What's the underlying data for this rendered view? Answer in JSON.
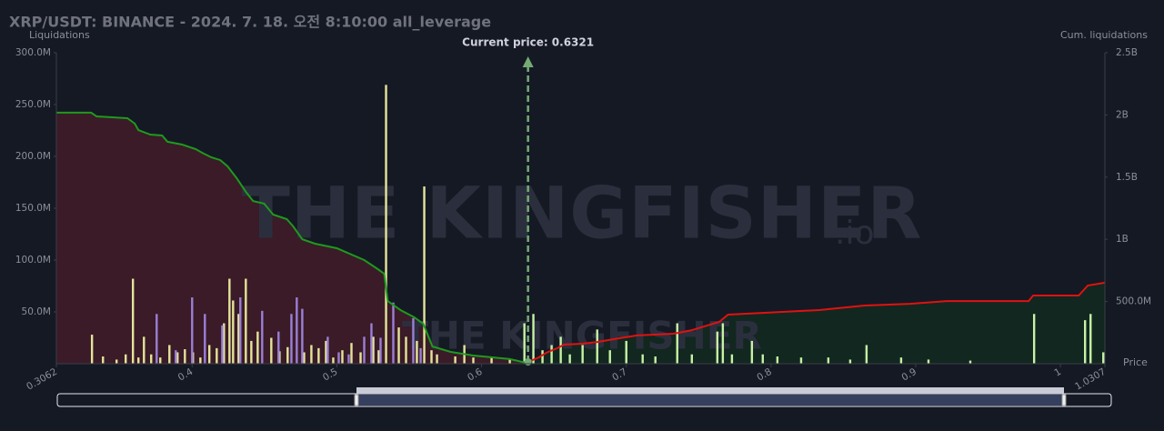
{
  "chart_data": {
    "type": "bar",
    "title": "XRP/USDT: BINANCE - 2024. 7. 18. 오전 8:10:00 all_leverage",
    "y_label": "Liquidations",
    "y2_label": "Cum. liquidations",
    "x_label": "Price",
    "current_price": {
      "value": 0.6321,
      "label": "Current price: 0.6321"
    },
    "watermark": "THE KINGFISHER",
    "watermark_suffix": ".io",
    "xlim": [
      0.3062,
      1.0307
    ],
    "xticks": [
      0.3062,
      0.4,
      0.5,
      0.6,
      0.7,
      0.8,
      0.9,
      1,
      1.0307
    ],
    "ylim": [
      0,
      300
    ],
    "yticks": [
      {
        "value": 50,
        "label": "50.0M"
      },
      {
        "value": 100,
        "label": "100.0M"
      },
      {
        "value": 150,
        "label": "150.0M"
      },
      {
        "value": 200,
        "label": "200.0M"
      },
      {
        "value": 250,
        "label": "250.0M"
      },
      {
        "value": 300,
        "label": "300.0M"
      }
    ],
    "y2lim": [
      0,
      2500
    ],
    "y2ticks": [
      {
        "value": 500,
        "label": "500.0M"
      },
      {
        "value": 1000,
        "label": "1B"
      },
      {
        "value": 1500,
        "label": "1.5B"
      },
      {
        "value": 2000,
        "label": "2B"
      },
      {
        "value": 2500,
        "label": "2.5B"
      }
    ],
    "series": [
      {
        "type": "bar",
        "color": "#e4e49a",
        "x": [
          0.3308,
          0.3384,
          0.3478,
          0.3541,
          0.3591,
          0.3629,
          0.3667,
          0.3717,
          0.378,
          0.3843,
          0.3899,
          0.395,
          0.4006,
          0.4057,
          0.4119,
          0.417,
          0.422,
          0.4258,
          0.4283,
          0.4321,
          0.4371,
          0.4409,
          0.4453,
          0.4547,
          0.4604,
          0.466,
          0.4774,
          0.4824,
          0.4874,
          0.4925,
          0.4975,
          0.5038,
          0.5101,
          0.5164,
          0.5252,
          0.5289,
          0.534,
          0.5428,
          0.5478,
          0.5553,
          0.5604,
          0.5654,
          0.5692,
          0.5818,
          0.5881,
          0.5943,
          0.6069,
          0.6195
        ],
        "values": [
          28,
          7,
          4,
          9,
          82,
          6,
          26,
          9,
          6,
          18,
          11,
          14,
          11,
          6,
          18,
          15,
          39,
          82,
          61,
          48,
          82,
          22,
          31,
          25,
          12,
          16,
          11,
          18,
          15,
          22,
          6,
          13,
          20,
          11,
          26,
          13,
          269,
          35,
          26,
          22,
          171,
          13,
          9,
          7,
          18,
          6,
          6,
          4
        ]
      },
      {
        "type": "bar",
        "color": "#9a7fd6",
        "x": [
          0.3755,
          0.3887,
          0.4,
          0.4088,
          0.4208,
          0.4333,
          0.4484,
          0.4597,
          0.4686,
          0.4723,
          0.4761,
          0.4937,
          0.5013,
          0.5082,
          0.5189,
          0.5239,
          0.5302,
          0.539,
          0.5528,
          0.5579
        ],
        "values": [
          48,
          13,
          64,
          48,
          37,
          64,
          51,
          31,
          48,
          64,
          53,
          26,
          11,
          9,
          26,
          39,
          25,
          59,
          44,
          15
        ]
      },
      {
        "type": "bar",
        "color": "#c6f2a6",
        "x": [
          0.6296,
          0.6358,
          0.6421,
          0.6484,
          0.6547,
          0.661,
          0.6698,
          0.6799,
          0.6887,
          0.7,
          0.7113,
          0.7201,
          0.7352,
          0.7453,
          0.7629,
          0.7667,
          0.773,
          0.7868,
          0.7943,
          0.8044,
          0.8208,
          0.8396,
          0.8547,
          0.866,
          0.8899,
          0.9088,
          0.9377,
          0.9818,
          1.017,
          1.0208,
          1.0296
        ],
        "values": [
          39,
          48,
          13,
          18,
          26,
          9,
          18,
          33,
          13,
          22,
          9,
          7,
          39,
          9,
          31,
          39,
          9,
          22,
          9,
          7,
          6,
          6,
          4,
          18,
          6,
          4,
          3,
          48,
          42,
          48,
          11
        ]
      },
      {
        "type": "line",
        "axis": "y2",
        "color": "#1e9a1e",
        "fill": "#3a1b27",
        "x": [
          0.3062,
          0.3302,
          0.334,
          0.3553,
          0.3604,
          0.3629,
          0.3711,
          0.3792,
          0.383,
          0.3931,
          0.4025,
          0.4069,
          0.4132,
          0.4195,
          0.4245,
          0.4308,
          0.4371,
          0.4421,
          0.4497,
          0.456,
          0.4654,
          0.4698,
          0.4761,
          0.4849,
          0.5,
          0.5189,
          0.5283,
          0.5327,
          0.5352,
          0.544,
          0.5535,
          0.5597,
          0.566,
          0.5786,
          0.5943,
          0.6195,
          0.6308
        ],
        "values": [
          2018,
          2018,
          1988,
          1974,
          1930,
          1878,
          1842,
          1835,
          1784,
          1762,
          1725,
          1696,
          1659,
          1637,
          1586,
          1491,
          1382,
          1308,
          1287,
          1199,
          1162,
          1104,
          1001,
          965,
          928,
          833,
          760,
          724,
          504,
          431,
          373,
          322,
          139,
          95,
          66,
          37,
          7
        ]
      },
      {
        "type": "line",
        "axis": "y2",
        "color": "#e01212",
        "fill": "#12271f",
        "x": [
          0.6308,
          0.6396,
          0.6447,
          0.6522,
          0.6572,
          0.6698,
          0.6799,
          0.695,
          0.7075,
          0.7327,
          0.7453,
          0.7642,
          0.7704,
          0.7956,
          0.8333,
          0.8648,
          0.8962,
          0.9214,
          0.978,
          0.9811,
          1.0126,
          1.0189,
          1.0307
        ],
        "values": [
          7,
          51,
          88,
          124,
          154,
          161,
          175,
          205,
          227,
          241,
          270,
          336,
          395,
          409,
          431,
          468,
          482,
          504,
          504,
          548,
          548,
          629,
          651
        ]
      }
    ]
  }
}
